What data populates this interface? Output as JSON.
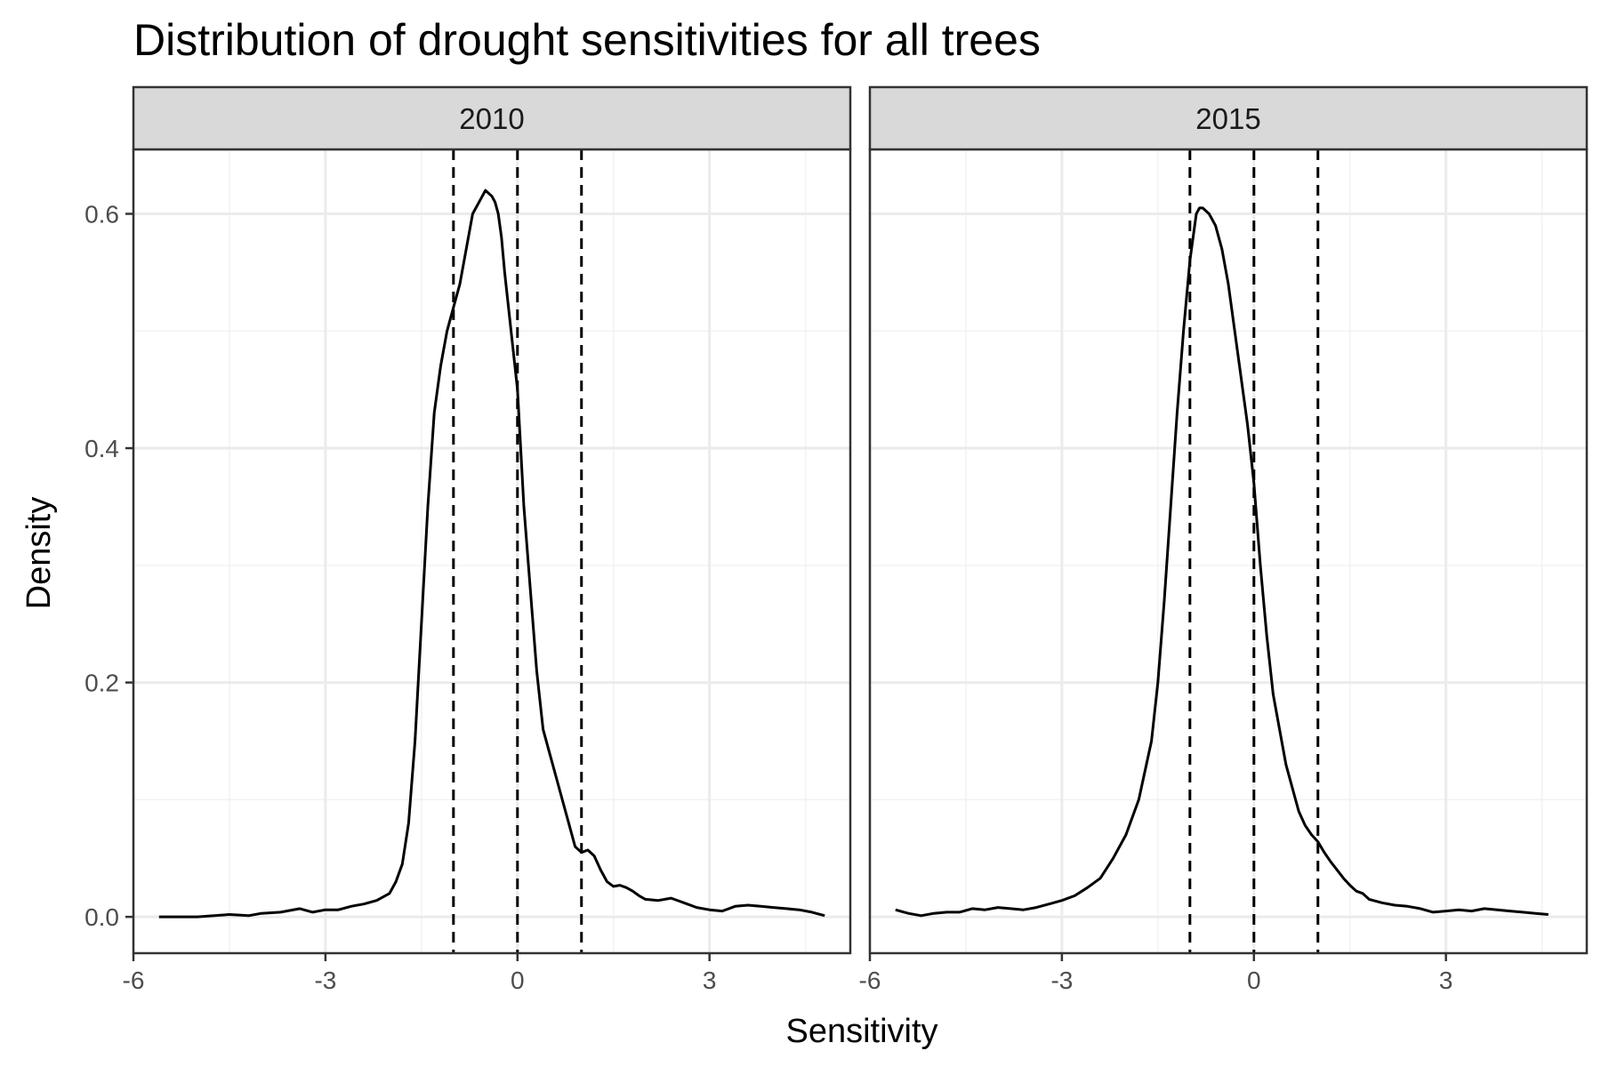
{
  "chart_data": {
    "type": "line",
    "title": "Distribution of drought sensitivities for all trees",
    "xlabel": "Sensitivity",
    "ylabel": "Density",
    "xlim": [
      -6.0,
      5.2
    ],
    "ylim": [
      -0.031,
      0.655
    ],
    "x_ticks": [
      -6,
      -3,
      0,
      3
    ],
    "x_tick_labels": [
      "-6",
      "-3",
      "0",
      "3"
    ],
    "y_ticks": [
      0.0,
      0.2,
      0.4,
      0.6
    ],
    "y_tick_labels": [
      "0.0",
      "0.2",
      "0.4",
      "0.6"
    ],
    "grid": true,
    "reference_lines": [
      -1,
      0,
      1
    ],
    "line_color": "#000000",
    "panels": [
      {
        "label": "2010",
        "x": [
          -5.6,
          -5.0,
          -4.5,
          -4.2,
          -4.0,
          -3.7,
          -3.4,
          -3.2,
          -3.0,
          -2.8,
          -2.6,
          -2.4,
          -2.2,
          -2.0,
          -1.9,
          -1.8,
          -1.7,
          -1.6,
          -1.5,
          -1.4,
          -1.3,
          -1.2,
          -1.1,
          -1.0,
          -0.9,
          -0.8,
          -0.7,
          -0.6,
          -0.5,
          -0.4,
          -0.35,
          -0.3,
          -0.25,
          -0.2,
          -0.1,
          0.0,
          0.1,
          0.2,
          0.3,
          0.4,
          0.5,
          0.6,
          0.7,
          0.8,
          0.9,
          1.0,
          1.1,
          1.2,
          1.3,
          1.4,
          1.5,
          1.6,
          1.7,
          1.8,
          1.9,
          2.0,
          2.2,
          2.4,
          2.6,
          2.8,
          3.0,
          3.2,
          3.4,
          3.6,
          3.8,
          4.0,
          4.2,
          4.4,
          4.6,
          4.8
        ],
        "y": [
          0.0,
          0.0,
          0.002,
          0.001,
          0.003,
          0.004,
          0.007,
          0.004,
          0.006,
          0.006,
          0.009,
          0.011,
          0.014,
          0.02,
          0.03,
          0.045,
          0.08,
          0.15,
          0.25,
          0.35,
          0.43,
          0.47,
          0.5,
          0.52,
          0.54,
          0.57,
          0.6,
          0.61,
          0.62,
          0.615,
          0.61,
          0.6,
          0.58,
          0.55,
          0.5,
          0.45,
          0.35,
          0.28,
          0.21,
          0.16,
          0.14,
          0.12,
          0.1,
          0.08,
          0.06,
          0.055,
          0.057,
          0.052,
          0.04,
          0.03,
          0.026,
          0.027,
          0.025,
          0.022,
          0.018,
          0.015,
          0.014,
          0.016,
          0.012,
          0.008,
          0.006,
          0.005,
          0.009,
          0.01,
          0.009,
          0.008,
          0.007,
          0.006,
          0.004,
          0.001
        ]
      },
      {
        "label": "2015",
        "x": [
          -5.6,
          -5.4,
          -5.2,
          -5.0,
          -4.8,
          -4.6,
          -4.4,
          -4.2,
          -4.0,
          -3.8,
          -3.6,
          -3.4,
          -3.2,
          -3.0,
          -2.8,
          -2.6,
          -2.4,
          -2.2,
          -2.0,
          -1.8,
          -1.6,
          -1.5,
          -1.4,
          -1.3,
          -1.2,
          -1.1,
          -1.0,
          -0.9,
          -0.85,
          -0.8,
          -0.7,
          -0.6,
          -0.5,
          -0.4,
          -0.3,
          -0.2,
          -0.1,
          0.0,
          0.1,
          0.2,
          0.3,
          0.4,
          0.5,
          0.6,
          0.7,
          0.8,
          0.9,
          1.0,
          1.1,
          1.2,
          1.3,
          1.4,
          1.5,
          1.6,
          1.7,
          1.8,
          2.0,
          2.2,
          2.4,
          2.6,
          2.8,
          3.0,
          3.2,
          3.4,
          3.6,
          3.8,
          4.0,
          4.2,
          4.4,
          4.6
        ],
        "y": [
          0.006,
          0.003,
          0.001,
          0.003,
          0.004,
          0.004,
          0.007,
          0.006,
          0.008,
          0.007,
          0.006,
          0.008,
          0.011,
          0.014,
          0.018,
          0.025,
          0.033,
          0.05,
          0.07,
          0.1,
          0.15,
          0.2,
          0.27,
          0.35,
          0.43,
          0.5,
          0.56,
          0.6,
          0.605,
          0.605,
          0.6,
          0.59,
          0.57,
          0.54,
          0.5,
          0.46,
          0.42,
          0.37,
          0.3,
          0.24,
          0.19,
          0.16,
          0.13,
          0.11,
          0.09,
          0.078,
          0.07,
          0.064,
          0.055,
          0.047,
          0.04,
          0.033,
          0.027,
          0.022,
          0.02,
          0.015,
          0.012,
          0.01,
          0.009,
          0.007,
          0.004,
          0.005,
          0.006,
          0.005,
          0.007,
          0.006,
          0.005,
          0.004,
          0.003,
          0.002
        ]
      }
    ]
  }
}
